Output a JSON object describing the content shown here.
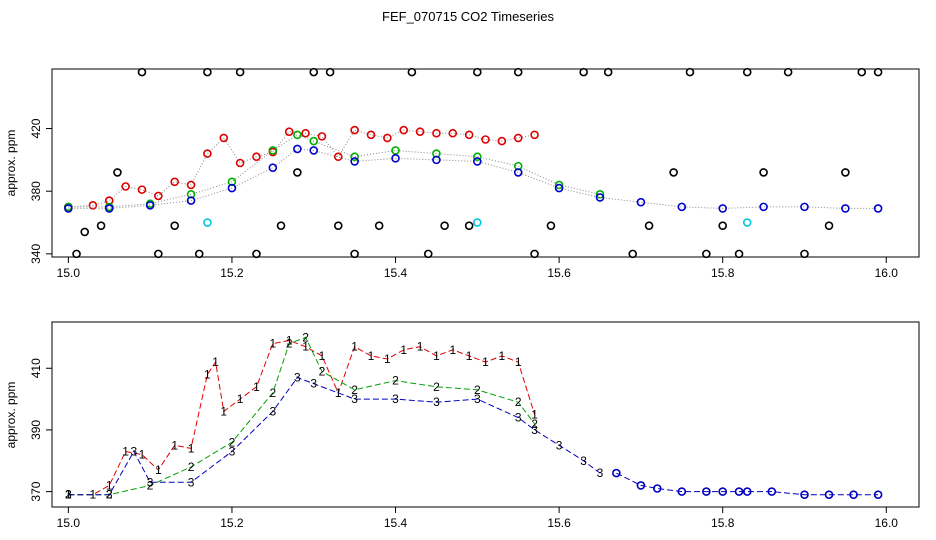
{
  "title": "FEF_070715  CO2 Timeseries",
  "chart_data": [
    {
      "type": "scatter",
      "ylabel": "approx. ppm",
      "xlim": [
        14.98,
        16.04
      ],
      "ylim": [
        338,
        458
      ],
      "xticks": [
        15.0,
        15.2,
        15.4,
        15.6,
        15.8,
        16.0
      ],
      "xtick_labels": [
        "15.0",
        "15.2",
        "15.4",
        "15.6",
        "15.8",
        "16.0"
      ],
      "yticks": [
        340,
        380,
        420
      ],
      "ytick_labels": [
        "340",
        "380",
        "420"
      ],
      "series": [
        {
          "color": "#e00000",
          "x": [
            15.0,
            15.03,
            15.05,
            15.07,
            15.09,
            15.11,
            15.13,
            15.15,
            15.17,
            15.19,
            15.21,
            15.23,
            15.25,
            15.27,
            15.29,
            15.31,
            15.33,
            15.35,
            15.37,
            15.39,
            15.41,
            15.43,
            15.45,
            15.47,
            15.49,
            15.51,
            15.53,
            15.55,
            15.57
          ],
          "y": [
            370,
            371,
            374,
            383,
            381,
            377,
            386,
            384,
            404,
            414,
            398,
            402,
            405,
            418,
            417,
            415,
            402,
            419,
            416,
            414,
            419,
            418,
            417,
            417,
            416,
            413,
            412,
            414,
            416
          ]
        },
        {
          "color": "#00b000",
          "x": [
            15.0,
            15.05,
            15.1,
            15.15,
            15.2,
            15.25,
            15.28,
            15.3,
            15.35,
            15.4,
            15.45,
            15.5,
            15.55,
            15.6,
            15.65
          ],
          "y": [
            370,
            370,
            372,
            378,
            386,
            406,
            416,
            412,
            402,
            406,
            404,
            402,
            396,
            384,
            378
          ]
        },
        {
          "color": "#0000d0",
          "x": [
            15.0,
            15.05,
            15.1,
            15.15,
            15.2,
            15.25,
            15.28,
            15.3,
            15.35,
            15.4,
            15.45,
            15.5,
            15.55,
            15.6,
            15.65,
            15.7,
            15.75,
            15.8,
            15.85,
            15.9,
            15.95,
            15.99
          ],
          "y": [
            369,
            369,
            371,
            374,
            382,
            395,
            407,
            406,
            399,
            401,
            400,
            399,
            392,
            382,
            376,
            373,
            370,
            369,
            370,
            370,
            369,
            369
          ]
        },
        {
          "color": "#000000",
          "x": [
            15.01,
            15.02,
            15.04,
            15.06,
            15.09,
            15.11,
            15.13,
            15.16,
            15.17,
            15.21,
            15.23,
            15.26,
            15.28,
            15.3,
            15.32,
            15.33,
            15.35,
            15.38,
            15.42,
            15.44,
            15.46,
            15.49,
            15.5,
            15.55,
            15.57,
            15.59,
            15.63,
            15.66,
            15.69,
            15.71,
            15.74,
            15.76,
            15.78,
            15.8,
            15.82,
            15.83,
            15.85,
            15.88,
            15.9,
            15.93,
            15.95,
            15.97,
            15.99
          ],
          "y": [
            340,
            354,
            358,
            392,
            456,
            340,
            358,
            340,
            456,
            456,
            340,
            358,
            392,
            456,
            456,
            358,
            340,
            358,
            456,
            340,
            358,
            358,
            456,
            456,
            340,
            358,
            456,
            456,
            340,
            358,
            392,
            456,
            340,
            358,
            340,
            456,
            392,
            456,
            340,
            358,
            392,
            456,
            456
          ]
        },
        {
          "color": "#00c8e0",
          "x": [
            15.17,
            15.5,
            15.83
          ],
          "y": [
            360,
            360,
            360
          ]
        }
      ]
    },
    {
      "type": "line",
      "ylabel": "approx. ppm",
      "xlim": [
        14.98,
        16.04
      ],
      "ylim": [
        365,
        425
      ],
      "xticks": [
        15.0,
        15.2,
        15.4,
        15.6,
        15.8,
        16.0
      ],
      "xtick_labels": [
        "15.0",
        "15.2",
        "15.4",
        "15.6",
        "15.8",
        "16.0"
      ],
      "yticks": [
        370,
        390,
        410
      ],
      "ytick_labels": [
        "370",
        "390",
        "410"
      ],
      "series": [
        {
          "marker": "1",
          "color": "#e00000",
          "x": [
            15.0,
            15.03,
            15.05,
            15.07,
            15.09,
            15.11,
            15.13,
            15.15,
            15.17,
            15.18,
            15.19,
            15.21,
            15.23,
            15.25,
            15.27,
            15.29,
            15.31,
            15.33,
            15.35,
            15.37,
            15.39,
            15.41,
            15.43,
            15.45,
            15.47,
            15.49,
            15.51,
            15.53,
            15.55,
            15.57
          ],
          "y": [
            369,
            369,
            372,
            383,
            382,
            377,
            385,
            384,
            408,
            412,
            396,
            400,
            404,
            418,
            419,
            417,
            414,
            402,
            417,
            414,
            413,
            416,
            417,
            414,
            416,
            414,
            412,
            414,
            412,
            395
          ]
        },
        {
          "marker": "2",
          "color": "#00a000",
          "x": [
            15.0,
            15.05,
            15.1,
            15.15,
            15.2,
            15.25,
            15.27,
            15.29,
            15.31,
            15.35,
            15.4,
            15.45,
            15.5,
            15.55,
            15.57
          ],
          "y": [
            369,
            369,
            372,
            378,
            386,
            402,
            418,
            420,
            409,
            403,
            406,
            404,
            403,
            399,
            392
          ]
        },
        {
          "marker": "3",
          "color": "#0000c0",
          "x": [
            15.0,
            15.05,
            15.08,
            15.1,
            15.15,
            15.2,
            15.25,
            15.28,
            15.3,
            15.35,
            15.4,
            15.45,
            15.5,
            15.55,
            15.57,
            15.6,
            15.63,
            15.65
          ],
          "y": [
            369,
            369,
            383,
            373,
            373,
            383,
            396,
            407,
            405,
            400,
            400,
            399,
            400,
            394,
            390,
            385,
            380,
            376
          ]
        },
        {
          "marker": "o",
          "color": "#0000c0",
          "x": [
            15.67,
            15.7,
            15.72,
            15.75,
            15.78,
            15.8,
            15.82,
            15.83,
            15.86,
            15.9,
            15.93,
            15.96,
            15.99
          ],
          "y": [
            376,
            372,
            371,
            370,
            370,
            370,
            370,
            370,
            370,
            369,
            369,
            369,
            369
          ]
        }
      ]
    }
  ]
}
